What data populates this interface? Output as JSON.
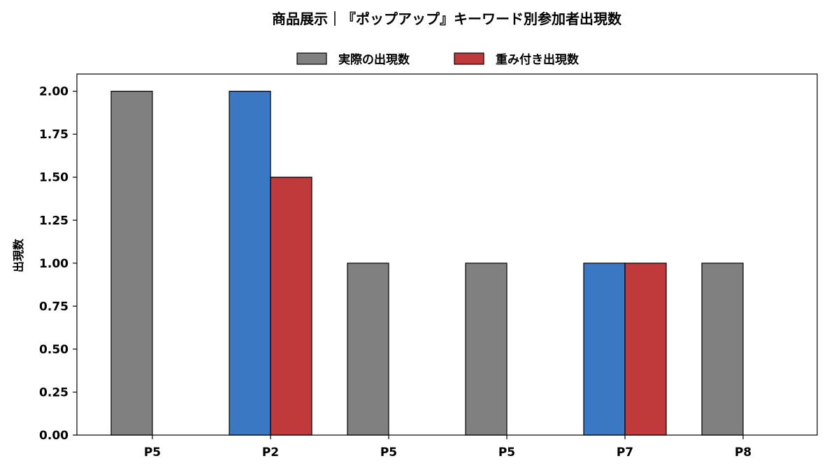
{
  "chart_data": {
    "type": "bar",
    "title": "商品展示｜『ポップアップ』キーワード別参加者出現数",
    "xlabel": "",
    "ylabel": "出現数",
    "categories": [
      "P5",
      "P2",
      "P5",
      "P5",
      "P7",
      "P8"
    ],
    "series": [
      {
        "name": "実際の出現数",
        "values": [
          2,
          2,
          1,
          1,
          1,
          1
        ],
        "point_colors": [
          "#808080",
          "#3a78c3",
          "#808080",
          "#808080",
          "#3a78c3",
          "#808080"
        ]
      },
      {
        "name": "重み付き出現数",
        "values": [
          0,
          1.5,
          0,
          0,
          1,
          0
        ],
        "color": "#c0393b"
      }
    ],
    "legend": {
      "position": "top-center",
      "entries": [
        {
          "label": "実際の出現数",
          "color": "#808080"
        },
        {
          "label": "重み付き出現数",
          "color": "#c0393b"
        }
      ]
    },
    "ylim": [
      0,
      2.1
    ],
    "yticks": [
      "0.00",
      "0.25",
      "0.50",
      "0.75",
      "1.00",
      "1.25",
      "1.50",
      "1.75",
      "2.00"
    ],
    "grid": false
  }
}
